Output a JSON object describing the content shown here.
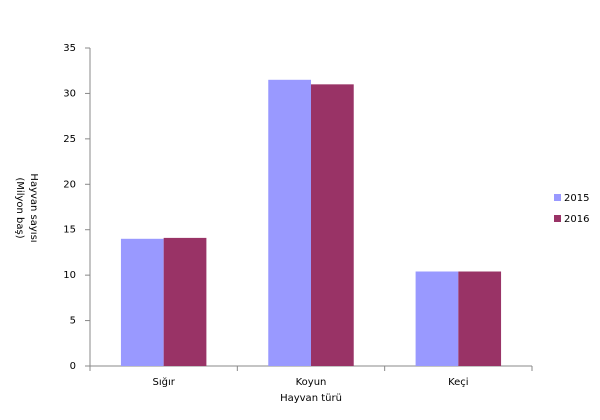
{
  "chart_data": {
    "type": "bar",
    "categories": [
      "Sığır",
      "Koyun",
      "Keçi"
    ],
    "series": [
      {
        "name": "2015",
        "color": "#9999ff",
        "values": [
          14.0,
          31.5,
          10.4
        ]
      },
      {
        "name": "2016",
        "color": "#993366",
        "values": [
          14.1,
          31.0,
          10.4
        ]
      }
    ],
    "x_label": "Hayvan türü",
    "y_label": [
      "Hayvan sayısı",
      "(Milyon baş)"
    ],
    "ylim": [
      0,
      35
    ],
    "yticks": [
      0,
      5,
      10,
      15,
      20,
      25,
      30,
      35
    ],
    "grid": false,
    "legend": "right"
  }
}
